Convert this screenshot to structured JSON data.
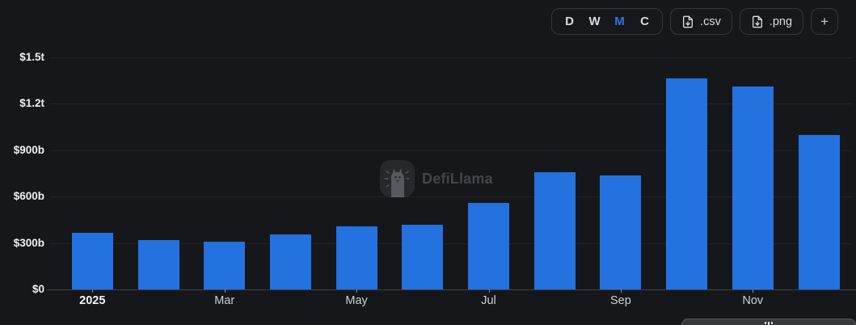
{
  "toolbar": {
    "ranges": [
      {
        "label": "D",
        "active": false
      },
      {
        "label": "W",
        "active": false
      },
      {
        "label": "M",
        "active": true
      },
      {
        "label": "C",
        "active": false
      }
    ],
    "export_csv_label": ".csv",
    "export_png_label": ".png",
    "add_label": "+"
  },
  "watermark": {
    "brand": "DefiLlama"
  },
  "colors": {
    "background": "#16171b",
    "bar": "#2471e0",
    "active_interval": "#3e6fdd",
    "axis_text": "#eef0f1",
    "watermark_text": "#42454b"
  },
  "chart_data": {
    "type": "bar",
    "title": "",
    "unit": "USD",
    "categories": [
      "Jan 2025",
      "Feb 2025",
      "Mar 2025",
      "Apr 2025",
      "May 2025",
      "Jun 2025",
      "Jul 2025",
      "Aug 2025",
      "Sep 2025",
      "Oct 2025",
      "Nov 2025",
      "Dec 2025"
    ],
    "values": [
      365,
      318,
      308,
      355,
      409,
      420,
      560,
      757,
      735,
      1365,
      1310,
      997
    ],
    "values_unit": "billions",
    "x_tick_labels": [
      "2025",
      "",
      "Mar",
      "",
      "May",
      "",
      "Jul",
      "",
      "Sep",
      "",
      "Nov",
      ""
    ],
    "y_ticks": [
      {
        "value": 0,
        "label": "$0"
      },
      {
        "value": 300,
        "label": "$300b"
      },
      {
        "value": 600,
        "label": "$600b"
      },
      {
        "value": 900,
        "label": "$900b"
      },
      {
        "value": 1200,
        "label": "$1.2t"
      },
      {
        "value": 1500,
        "label": "$1.5t"
      }
    ],
    "ylim": [
      0,
      1500
    ],
    "xlabel": "",
    "ylabel": "",
    "grid": "on",
    "legend": "none",
    "bar_color": "#2471e0"
  }
}
